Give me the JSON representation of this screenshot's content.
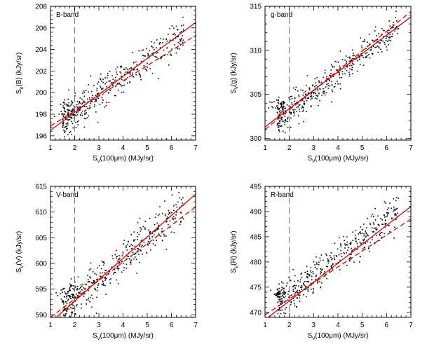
{
  "chart_data": [
    {
      "type": "scatter",
      "band_label": "B-band",
      "xlabel": "S_ν(100μm)  (MJy/sr)",
      "ylabel": "S_ν(B)  (kJy/sr)",
      "xlim": [
        1,
        7
      ],
      "ylim": [
        195.6,
        208
      ],
      "xticks": [
        1,
        2,
        3,
        4,
        5,
        6,
        7
      ],
      "yticks": [
        196,
        198,
        200,
        202,
        204,
        206,
        208
      ],
      "vline_x": 2,
      "fit_solid": {
        "x": [
          1,
          7
        ],
        "y": [
          196.5,
          206.5
        ]
      },
      "fit_dashed": {
        "x": [
          1,
          7
        ],
        "y": [
          196.9,
          205.3
        ]
      },
      "point_cloud": {
        "n": 420,
        "x_range": [
          1.5,
          6.5
        ],
        "slope": 1.65,
        "intercept": 194.9,
        "scatter": 0.75
      },
      "clump": {
        "n": 45,
        "x": 1.8,
        "y": 198.3,
        "sx": 0.22,
        "sy": 0.4
      },
      "colors": {
        "fit": "#e00000",
        "points": "#000000"
      }
    },
    {
      "type": "scatter",
      "band_label": "g-band",
      "xlabel": "S_ν(100μm)  (MJy/sr)",
      "ylabel": "S_ν(g)  (kJy/sr)",
      "xlim": [
        1,
        7
      ],
      "ylim": [
        299.8,
        315
      ],
      "xticks": [
        1,
        2,
        3,
        4,
        5,
        6,
        7
      ],
      "yticks": [
        300,
        305,
        310,
        315
      ],
      "vline_x": 2,
      "fit_solid": {
        "x": [
          1,
          7
        ],
        "y": [
          301.3,
          313.8
        ]
      },
      "fit_dashed": {
        "x": [
          1,
          7
        ],
        "y": [
          301.0,
          314.4
        ]
      },
      "point_cloud": {
        "n": 420,
        "x_range": [
          1.5,
          6.5
        ],
        "slope": 2.15,
        "intercept": 298.8,
        "scatter": 0.9
      },
      "clump": {
        "n": 45,
        "x": 1.6,
        "y": 303.8,
        "sx": 0.15,
        "sy": 0.35
      },
      "colors": {
        "fit": "#e00000",
        "points": "#000000"
      }
    },
    {
      "type": "scatter",
      "band_label": "V-band",
      "xlabel": "S_ν(100μm)  (MJy/sr)",
      "ylabel": "S_ν(V)  (kJy/sr)",
      "xlim": [
        1,
        7
      ],
      "ylim": [
        589.5,
        615
      ],
      "xticks": [
        1,
        2,
        3,
        4,
        5,
        6,
        7
      ],
      "yticks": [
        590,
        595,
        600,
        605,
        610,
        615
      ],
      "vline_x": 2,
      "fit_solid": {
        "x": [
          1,
          7
        ],
        "y": [
          588.5,
          613.5
        ]
      },
      "fit_dashed": {
        "x": [
          1,
          7
        ],
        "y": [
          589.5,
          611.0
        ]
      },
      "point_cloud": {
        "n": 420,
        "x_range": [
          1.5,
          6.5
        ],
        "slope": 4.0,
        "intercept": 585.0,
        "scatter": 1.9
      },
      "clump": {
        "n": 40,
        "x": 1.7,
        "y": 594.0,
        "sx": 0.2,
        "sy": 1.0
      },
      "colors": {
        "fit": "#e00000",
        "points": "#000000"
      }
    },
    {
      "type": "scatter",
      "band_label": "R-band",
      "xlabel": "S_ν(100μm)  (MJy/sr)",
      "ylabel": "S_ν(R)  (kJy/sr)",
      "xlim": [
        1,
        7
      ],
      "ylim": [
        469,
        495
      ],
      "xticks": [
        1,
        2,
        3,
        4,
        5,
        6,
        7
      ],
      "yticks": [
        470,
        475,
        480,
        485,
        490,
        495
      ],
      "vline_x": 2,
      "fit_solid": {
        "x": [
          1,
          7
        ],
        "y": [
          468.5,
          491.0
        ]
      },
      "fit_dashed": {
        "x": [
          1,
          7
        ],
        "y": [
          469.5,
          488.5
        ]
      },
      "point_cloud": {
        "n": 420,
        "x_range": [
          1.5,
          6.5
        ],
        "slope": 3.7,
        "intercept": 466.0,
        "scatter": 1.7
      },
      "clump": {
        "n": 40,
        "x": 1.6,
        "y": 473.4,
        "sx": 0.15,
        "sy": 0.6
      },
      "colors": {
        "fit": "#e00000",
        "points": "#000000"
      }
    }
  ]
}
